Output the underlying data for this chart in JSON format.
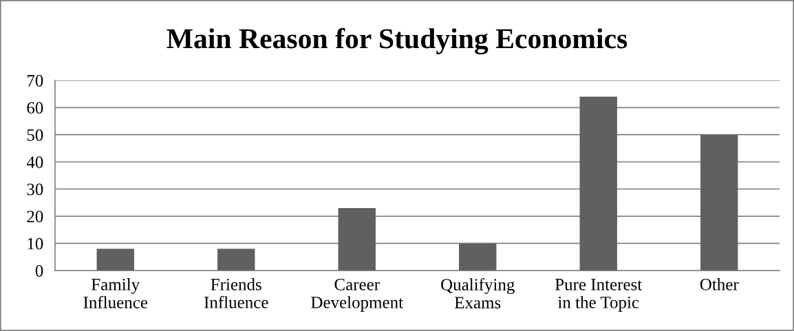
{
  "chart_data": {
    "type": "bar",
    "title": "Main Reason for Studying Economics",
    "categories": [
      "Family\nInfluence",
      "Friends\nInfluence",
      "Career\nDevelopment",
      "Qualifying\nExams",
      "Pure Interest\nin the Topic",
      "Other"
    ],
    "values": [
      8,
      8,
      23,
      10,
      64,
      50
    ],
    "colors": [
      "#606060",
      "#606060",
      "#606060",
      "#606060",
      "#606060",
      "#606060"
    ],
    "ylim": [
      0,
      70
    ],
    "yticks": [
      0,
      10,
      20,
      30,
      40,
      50,
      60,
      70
    ],
    "grid": "y",
    "legend": false
  }
}
